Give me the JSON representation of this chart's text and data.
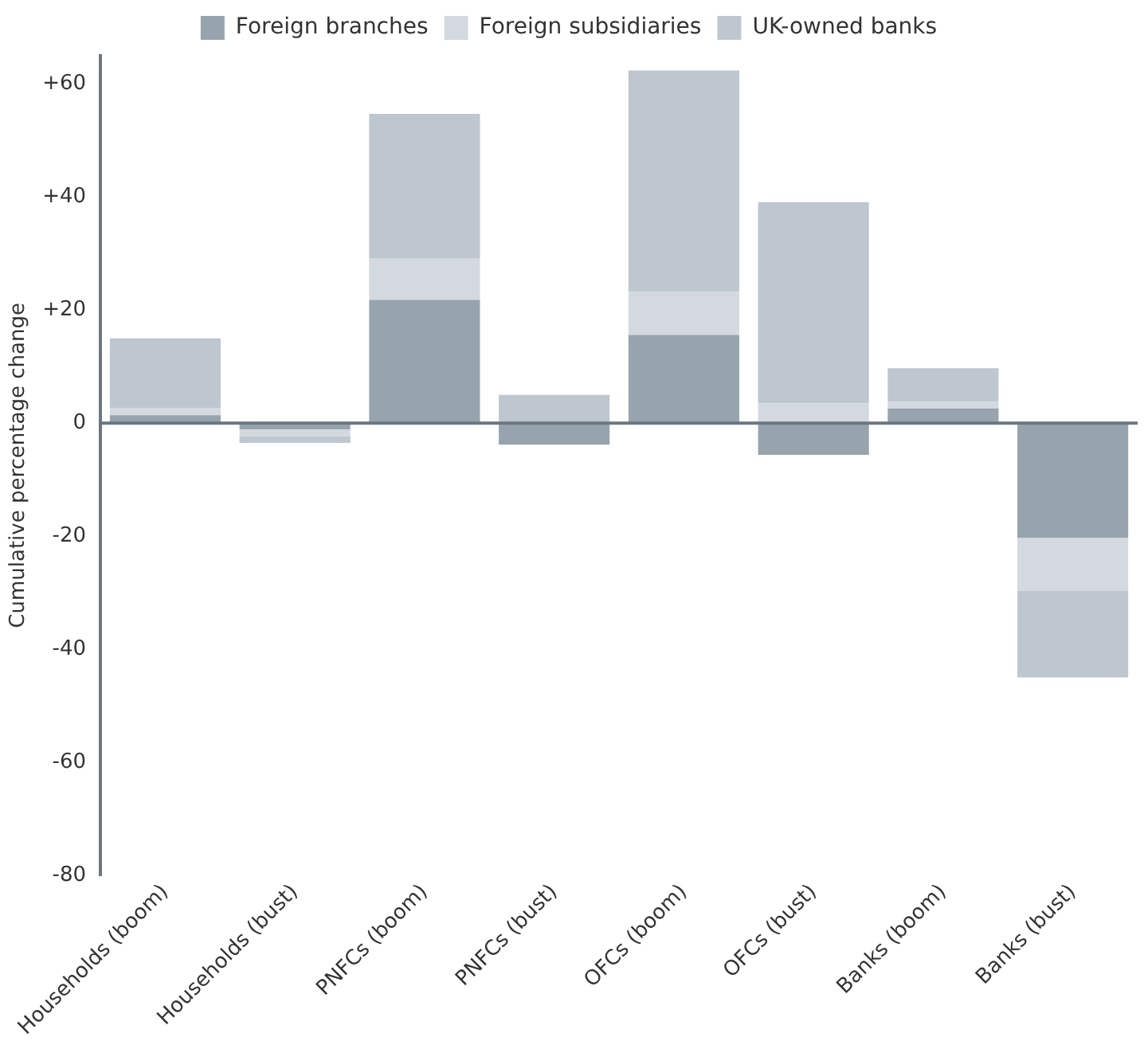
{
  "chart_data": {
    "type": "bar",
    "stacked": true,
    "ylabel": "Cumulative percentage change",
    "categories": [
      "Households (boom)",
      "Households (bust)",
      "PNFCs (boom)",
      "PNFCs (bust)",
      "OFCs (boom)",
      "OFCs (bust)",
      "Banks (boom)",
      "Banks (bust)"
    ],
    "series": [
      {
        "name": "Foreign branches",
        "color": "#97a4ad",
        "values": [
          1.4,
          -1.1,
          21.8,
          -3.8,
          15.6,
          -5.6,
          2.6,
          -20.3
        ]
      },
      {
        "name": "Foreign subsidiaries",
        "color": "#d4d9e0",
        "values": [
          1.3,
          -1.2,
          7.3,
          0,
          7.6,
          3.5,
          1.2,
          -9.4
        ]
      },
      {
        "name": "UK-owned banks",
        "color": "#bec7d0",
        "values": [
          12.3,
          -1.2,
          25.6,
          5,
          39.2,
          35.6,
          5.9,
          -15.3
        ]
      }
    ],
    "ylim": [
      -80,
      65
    ],
    "yticks": [
      {
        "value": 60,
        "label": "+60"
      },
      {
        "value": 40,
        "label": "+40"
      },
      {
        "value": 20,
        "label": "+20"
      },
      0,
      -20,
      -40,
      -60,
      -80
    ],
    "ref_lines": [
      {
        "axis": "y",
        "value": 0,
        "color": "#6b7780"
      }
    ],
    "grid": false,
    "legend": "top"
  }
}
